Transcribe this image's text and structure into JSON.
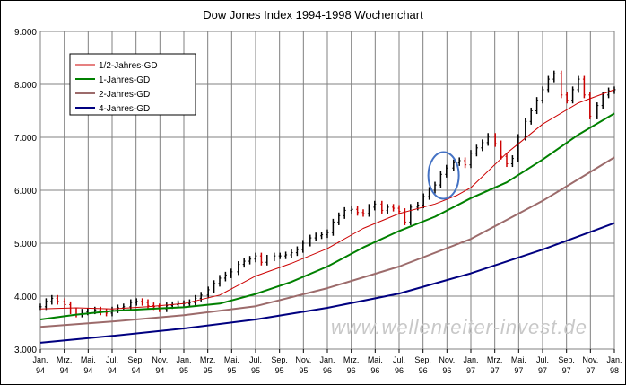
{
  "chart_data": {
    "type": "line",
    "title": "Dow Jones Index 1994-1998 Wochenchart",
    "xlabel": "",
    "ylabel": "",
    "ylim": [
      3000,
      9000
    ],
    "xlim": [
      1994.0,
      1998.0
    ],
    "grid": true,
    "legend_position": "top-left",
    "y_ticks": [
      "9.000",
      "8.000",
      "7.000",
      "6.000",
      "5.000",
      "4.000",
      "3.000"
    ],
    "y_tick_values": [
      9000,
      8000,
      7000,
      6000,
      5000,
      4000,
      3000
    ],
    "x_ticks": [
      {
        "month": "Jan.",
        "year": "94",
        "t": 1994.0
      },
      {
        "month": "Mrz.",
        "year": "94",
        "t": 1994.1667
      },
      {
        "month": "Mai.",
        "year": "94",
        "t": 1994.3333
      },
      {
        "month": "Jul.",
        "year": "94",
        "t": 1994.5
      },
      {
        "month": "Sep.",
        "year": "94",
        "t": 1994.6667
      },
      {
        "month": "Nov.",
        "year": "94",
        "t": 1994.8333
      },
      {
        "month": "Jan.",
        "year": "95",
        "t": 1995.0
      },
      {
        "month": "Mrz.",
        "year": "95",
        "t": 1995.1667
      },
      {
        "month": "Mai.",
        "year": "95",
        "t": 1995.3333
      },
      {
        "month": "Jul.",
        "year": "95",
        "t": 1995.5
      },
      {
        "month": "Sep.",
        "year": "95",
        "t": 1995.6667
      },
      {
        "month": "Nov.",
        "year": "95",
        "t": 1995.8333
      },
      {
        "month": "Jan.",
        "year": "96",
        "t": 1996.0
      },
      {
        "month": "Mrz.",
        "year": "96",
        "t": 1996.1667
      },
      {
        "month": "Mai.",
        "year": "96",
        "t": 1996.3333
      },
      {
        "month": "Jul.",
        "year": "96",
        "t": 1996.5
      },
      {
        "month": "Sep.",
        "year": "96",
        "t": 1996.6667
      },
      {
        "month": "Nov.",
        "year": "96",
        "t": 1996.8333
      },
      {
        "month": "Jan.",
        "year": "97",
        "t": 1997.0
      },
      {
        "month": "Mrz.",
        "year": "97",
        "t": 1997.1667
      },
      {
        "month": "Mai.",
        "year": "97",
        "t": 1997.3333
      },
      {
        "month": "Jul.",
        "year": "97",
        "t": 1997.5
      },
      {
        "month": "Sep.",
        "year": "97",
        "t": 1997.6667
      },
      {
        "month": "Nov.",
        "year": "97",
        "t": 1997.8333
      },
      {
        "month": "Jan.",
        "year": "98",
        "t": 1998.0
      }
    ],
    "series": [
      {
        "name": "1/2-Jahres-GD",
        "color": "#cc0000",
        "x": [
          1994.0,
          1994.25,
          1994.5,
          1994.75,
          1995.0,
          1995.25,
          1995.5,
          1995.75,
          1996.0,
          1996.25,
          1996.5,
          1996.75,
          1996.9,
          1997.0,
          1997.25,
          1997.5,
          1997.75,
          1998.0
        ],
        "values": [
          3760,
          3780,
          3760,
          3800,
          3860,
          4020,
          4380,
          4620,
          4900,
          5280,
          5560,
          5740,
          5900,
          6050,
          6700,
          7250,
          7650,
          7900
        ]
      },
      {
        "name": "1-Jahres-GD",
        "color": "#008000",
        "x": [
          1994.0,
          1994.25,
          1994.5,
          1994.75,
          1995.0,
          1995.25,
          1995.5,
          1995.75,
          1996.0,
          1996.25,
          1996.5,
          1996.75,
          1997.0,
          1997.25,
          1997.5,
          1997.75,
          1998.0
        ],
        "values": [
          3560,
          3650,
          3720,
          3760,
          3790,
          3860,
          4040,
          4270,
          4560,
          4920,
          5230,
          5500,
          5850,
          6150,
          6580,
          7050,
          7450
        ]
      },
      {
        "name": "2-Jahres-GD",
        "color": "#9c6b6b",
        "x": [
          1994.0,
          1994.5,
          1995.0,
          1995.5,
          1996.0,
          1996.5,
          1997.0,
          1997.5,
          1998.0
        ],
        "values": [
          3420,
          3520,
          3640,
          3810,
          4150,
          4560,
          5080,
          5800,
          6620
        ]
      },
      {
        "name": "4-Jahres-GD",
        "color": "#000080",
        "x": [
          1994.0,
          1994.5,
          1995.0,
          1995.5,
          1996.0,
          1996.5,
          1997.0,
          1997.5,
          1998.0
        ],
        "values": [
          3120,
          3250,
          3390,
          3560,
          3780,
          4050,
          4430,
          4880,
          5380
        ]
      }
    ],
    "weekly_price": {
      "name": "Dow Jones",
      "x": [
        1994.0,
        1994.04,
        1994.08,
        1994.12,
        1994.17,
        1994.21,
        1994.25,
        1994.29,
        1994.33,
        1994.38,
        1994.42,
        1994.46,
        1994.5,
        1994.54,
        1994.58,
        1994.63,
        1994.67,
        1994.71,
        1994.75,
        1994.79,
        1994.83,
        1994.88,
        1994.92,
        1994.96,
        1995.0,
        1995.04,
        1995.08,
        1995.12,
        1995.17,
        1995.21,
        1995.25,
        1995.29,
        1995.33,
        1995.38,
        1995.42,
        1995.46,
        1995.5,
        1995.54,
        1995.58,
        1995.63,
        1995.67,
        1995.71,
        1995.75,
        1995.79,
        1995.83,
        1995.88,
        1995.92,
        1995.96,
        1996.0,
        1996.04,
        1996.08,
        1996.12,
        1996.17,
        1996.21,
        1996.25,
        1996.29,
        1996.33,
        1996.38,
        1996.42,
        1996.46,
        1996.5,
        1996.54,
        1996.58,
        1996.63,
        1996.67,
        1996.71,
        1996.75,
        1996.79,
        1996.83,
        1996.88,
        1996.92,
        1996.96,
        1997.0,
        1997.04,
        1997.08,
        1997.12,
        1997.17,
        1997.21,
        1997.25,
        1997.29,
        1997.33,
        1997.38,
        1997.42,
        1997.46,
        1997.5,
        1997.54,
        1997.58,
        1997.63,
        1997.67,
        1997.71,
        1997.75,
        1997.79,
        1997.83,
        1997.88,
        1997.92,
        1997.96,
        1998.0
      ],
      "values": [
        3800,
        3900,
        3960,
        3900,
        3840,
        3720,
        3660,
        3700,
        3720,
        3740,
        3700,
        3680,
        3740,
        3780,
        3800,
        3880,
        3900,
        3880,
        3820,
        3800,
        3760,
        3820,
        3840,
        3860,
        3860,
        3880,
        3960,
        4020,
        4120,
        4240,
        4340,
        4400,
        4460,
        4600,
        4660,
        4700,
        4760,
        4640,
        4720,
        4760,
        4760,
        4780,
        4820,
        4880,
        5000,
        5100,
        5140,
        5160,
        5200,
        5400,
        5520,
        5620,
        5640,
        5580,
        5560,
        5680,
        5740,
        5620,
        5680,
        5660,
        5600,
        5400,
        5680,
        5720,
        5880,
        6000,
        6100,
        6300,
        6420,
        6520,
        6560,
        6480,
        6700,
        6800,
        6900,
        7020,
        6880,
        6640,
        6500,
        6600,
        7000,
        7300,
        7500,
        7700,
        7900,
        8100,
        8200,
        7800,
        7700,
        7900,
        8100,
        7800,
        7400,
        7600,
        7800,
        7880,
        7900
      ]
    },
    "annotations": [
      "www.wellenreiter-invest.de"
    ]
  }
}
